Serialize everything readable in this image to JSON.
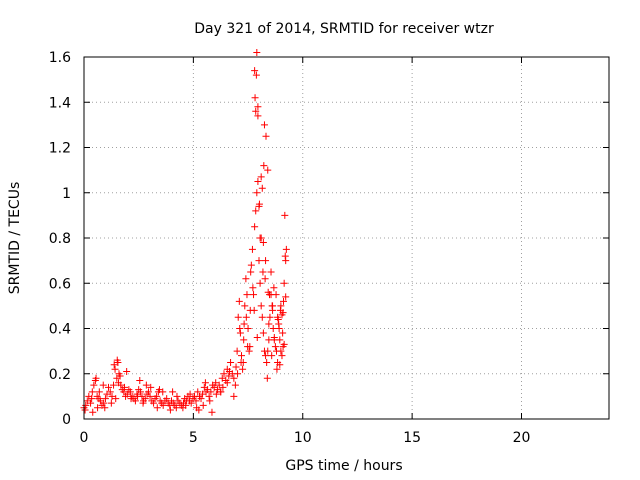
{
  "chart_data": {
    "type": "scatter",
    "title": "Day 321 of 2014, SRMTID for receiver wtzr",
    "xlabel": "GPS time / hours",
    "ylabel": "SRMTID / TECUs",
    "xlim": [
      0,
      24
    ],
    "ylim": [
      0,
      1.6
    ],
    "x_ticks": [
      0,
      5,
      10,
      15,
      20
    ],
    "x_tick_labels": [
      "0",
      "5",
      "10",
      "15",
      "20"
    ],
    "y_ticks": [
      0,
      0.2,
      0.4,
      0.6,
      0.8,
      1.0,
      1.2,
      1.4,
      1.6
    ],
    "y_tick_labels": [
      "0",
      "0.2",
      "0.4",
      "0.6",
      "0.8",
      "1",
      "1.2",
      "1.4",
      "1.6"
    ],
    "grid": true,
    "marker": "plus",
    "series": [
      {
        "name": "wtzr",
        "color": "#ff0000",
        "x": [
          0.0,
          0.08,
          0.15,
          0.22,
          0.3,
          0.38,
          0.45,
          0.52,
          0.6,
          0.68,
          0.75,
          0.82,
          0.9,
          0.98,
          1.05,
          1.12,
          1.2,
          1.28,
          1.35,
          1.42,
          1.5,
          1.55,
          1.6,
          1.68,
          1.75,
          1.82,
          1.9,
          1.98,
          2.05,
          2.12,
          2.2,
          2.28,
          2.35,
          2.42,
          2.5,
          2.58,
          2.65,
          2.72,
          2.8,
          2.88,
          2.95,
          3.02,
          3.1,
          3.18,
          3.25,
          3.32,
          3.4,
          3.48,
          3.55,
          3.62,
          3.7,
          3.78,
          3.85,
          3.92,
          4.0,
          4.08,
          4.15,
          4.22,
          4.3,
          4.38,
          4.45,
          4.52,
          4.6,
          4.68,
          4.75,
          4.82,
          4.9,
          4.98,
          5.05,
          5.12,
          5.2,
          5.28,
          5.35,
          5.42,
          5.5,
          5.58,
          5.65,
          5.72,
          5.8,
          5.88,
          5.95,
          6.02,
          6.1,
          6.18,
          6.25,
          6.32,
          6.4,
          6.48,
          6.55,
          6.62,
          6.7,
          6.78,
          6.85,
          6.92,
          7.0,
          7.05,
          7.1,
          7.15,
          7.2,
          7.25,
          7.3,
          7.35,
          7.4,
          7.45,
          7.5,
          7.55,
          7.6,
          7.65,
          7.7,
          7.75,
          7.8,
          7.85,
          7.9,
          7.95,
          8.0,
          8.05,
          8.1,
          8.15,
          8.2,
          8.25,
          8.3,
          8.35,
          8.4,
          8.45,
          8.5,
          8.55,
          8.6,
          8.65,
          8.7,
          8.75,
          8.8,
          8.85,
          8.9,
          8.95,
          9.0,
          9.05,
          9.1,
          9.15,
          9.2,
          9.25,
          0.05,
          0.35,
          0.55,
          0.7,
          0.95,
          1.25,
          1.45,
          1.52,
          1.65,
          1.85,
          2.15,
          2.45,
          2.7,
          3.05,
          3.35,
          3.6,
          3.95,
          4.25,
          4.55,
          4.85,
          5.15,
          5.45,
          5.75,
          6.05,
          6.35,
          6.65,
          6.95,
          7.12,
          7.28,
          7.42,
          7.58,
          7.72,
          7.8,
          7.88,
          7.95,
          8.02,
          8.1,
          8.18,
          8.25,
          8.32,
          8.4,
          8.48,
          8.55,
          8.62,
          8.7,
          8.78,
          8.85,
          8.92,
          9.0,
          9.08,
          9.15,
          9.22,
          0.4,
          0.62,
          0.88,
          1.38,
          1.58,
          1.95,
          2.55,
          2.85,
          3.45,
          4.05,
          4.65,
          5.25,
          5.55,
          5.85,
          6.25,
          6.55,
          6.85,
          7.02,
          7.18,
          7.32,
          7.48,
          7.62,
          7.78,
          7.82,
          7.92,
          8.05,
          8.15,
          8.22,
          8.28,
          8.38,
          8.45,
          8.58,
          8.68,
          8.82,
          8.95,
          9.05,
          9.12,
          9.18,
          7.85,
          7.9,
          7.95,
          8.0,
          8.1,
          8.2,
          8.3,
          8.42,
          8.62,
          8.88,
          8.98,
          9.1,
          9.22
        ],
        "y": [
          0.05,
          0.06,
          0.08,
          0.1,
          0.07,
          0.12,
          0.15,
          0.17,
          0.1,
          0.09,
          0.08,
          0.06,
          0.07,
          0.09,
          0.11,
          0.14,
          0.12,
          0.1,
          0.15,
          0.22,
          0.18,
          0.25,
          0.2,
          0.15,
          0.13,
          0.12,
          0.1,
          0.11,
          0.13,
          0.12,
          0.1,
          0.09,
          0.08,
          0.11,
          0.13,
          0.12,
          0.1,
          0.08,
          0.09,
          0.11,
          0.12,
          0.1,
          0.08,
          0.07,
          0.09,
          0.1,
          0.12,
          0.08,
          0.07,
          0.06,
          0.08,
          0.09,
          0.07,
          0.06,
          0.08,
          0.07,
          0.06,
          0.05,
          0.08,
          0.07,
          0.06,
          0.05,
          0.09,
          0.08,
          0.1,
          0.08,
          0.07,
          0.09,
          0.1,
          0.08,
          0.12,
          0.1,
          0.09,
          0.11,
          0.14,
          0.12,
          0.13,
          0.1,
          0.12,
          0.15,
          0.14,
          0.16,
          0.13,
          0.15,
          0.12,
          0.18,
          0.2,
          0.17,
          0.22,
          0.19,
          0.25,
          0.2,
          0.18,
          0.15,
          0.3,
          0.45,
          0.52,
          0.38,
          0.28,
          0.22,
          0.35,
          0.5,
          0.62,
          0.55,
          0.4,
          0.3,
          0.48,
          0.68,
          0.75,
          0.55,
          0.85,
          0.92,
          1.0,
          1.05,
          0.7,
          0.6,
          0.5,
          0.45,
          0.38,
          0.3,
          0.28,
          0.25,
          0.3,
          0.35,
          0.45,
          0.55,
          0.5,
          0.4,
          0.35,
          0.32,
          0.3,
          0.45,
          0.42,
          0.35,
          0.3,
          0.28,
          0.32,
          0.6,
          0.72,
          0.75,
          0.04,
          0.09,
          0.18,
          0.12,
          0.05,
          0.07,
          0.09,
          0.26,
          0.19,
          0.14,
          0.09,
          0.1,
          0.07,
          0.14,
          0.05,
          0.12,
          0.04,
          0.1,
          0.07,
          0.11,
          0.05,
          0.06,
          0.08,
          0.11,
          0.14,
          0.21,
          0.23,
          0.4,
          0.25,
          0.45,
          0.32,
          0.58,
          1.54,
          1.52,
          1.38,
          0.95,
          0.8,
          0.65,
          1.3,
          1.25,
          1.1,
          0.55,
          0.65,
          0.48,
          0.36,
          0.55,
          0.25,
          0.4,
          0.5,
          0.38,
          0.33,
          0.7,
          0.03,
          0.05,
          0.15,
          0.24,
          0.16,
          0.21,
          0.17,
          0.15,
          0.13,
          0.12,
          0.06,
          0.04,
          0.16,
          0.03,
          0.12,
          0.16,
          0.1,
          0.2,
          0.25,
          0.42,
          0.32,
          0.65,
          0.48,
          1.42,
          0.36,
          0.8,
          1.02,
          1.12,
          0.62,
          0.18,
          0.42,
          0.28,
          0.58,
          0.22,
          0.24,
          0.46,
          0.52,
          0.9,
          1.36,
          1.62,
          1.34,
          0.94,
          1.07,
          0.78,
          0.7,
          0.56,
          0.5,
          0.44,
          0.48,
          0.47,
          0.54
        ]
      }
    ]
  }
}
